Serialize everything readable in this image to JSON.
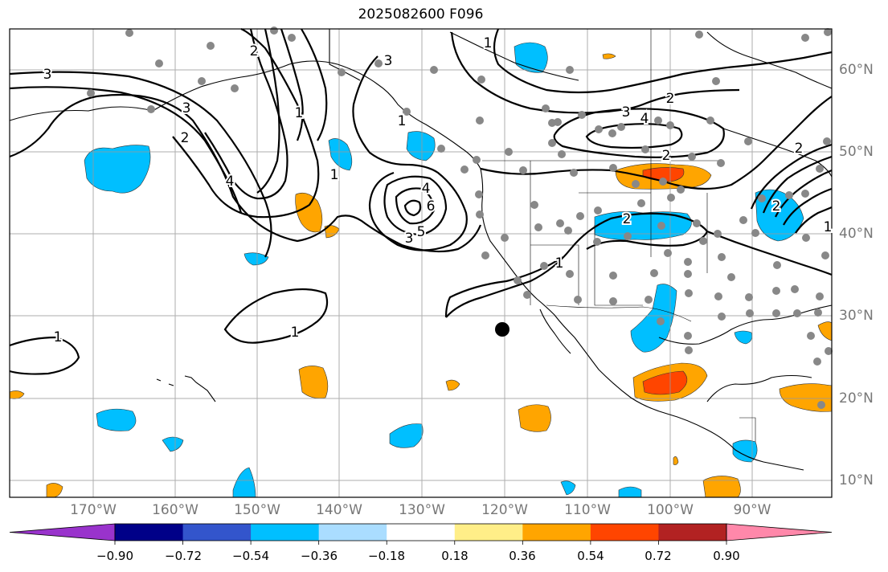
{
  "title": "2025082600 F096",
  "map": {
    "lon_labels": [
      "170°W",
      "160°W",
      "150°W",
      "140°W",
      "130°W",
      "120°W",
      "110°W",
      "100°W",
      "90°W"
    ],
    "lat_labels": [
      "60°N",
      "50°N",
      "40°N",
      "30°N",
      "20°N",
      "10°N"
    ],
    "contour_labels": [
      "3",
      "3",
      "2",
      "2",
      "4",
      "1",
      "1",
      "1",
      "1",
      "3",
      "3",
      "2",
      "2",
      "2",
      "4",
      "4",
      "6",
      "5",
      "3",
      "2",
      "1",
      "1",
      "1",
      "1",
      "2"
    ],
    "marker": "black dot"
  },
  "colorbar": {
    "ticks": [
      "−0.90",
      "−0.72",
      "−0.54",
      "−0.36",
      "−0.18",
      "0.18",
      "0.36",
      "0.54",
      "0.72",
      "0.90"
    ],
    "colors": [
      "#9933cc",
      "#000088",
      "#3355cc",
      "#00bfff",
      "#aaddff",
      "#ffffff",
      "#ffee88",
      "#ffa500",
      "#ff4500",
      "#b22222",
      "#ff88aa"
    ]
  }
}
